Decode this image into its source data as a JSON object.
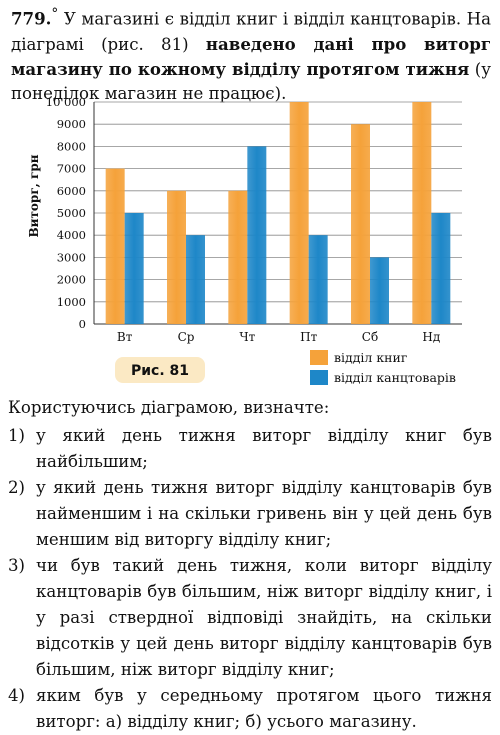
{
  "problem": {
    "number": "779.",
    "marker": "°",
    "text_part1": " У магазині є відділ книг і відділ канцтоварів. На діаграмі (рис. 81) ",
    "text_bold": "наведено дані про виторг магазину по кожному відділу протягом тижня",
    "text_part2": " (у понеділок магазин не працює)."
  },
  "chart_data": {
    "type": "bar",
    "categories": [
      "Вт",
      "Ср",
      "Чт",
      "Пт",
      "Сб",
      "Нд"
    ],
    "series": [
      {
        "name": "відділ книг",
        "values": [
          7000,
          6000,
          6000,
          10000,
          9000,
          10000
        ],
        "color": "#F5A23A"
      },
      {
        "name": "відділ канцтоварів",
        "values": [
          5000,
          4000,
          8000,
          4000,
          3000,
          5000
        ],
        "color": "#1E87C8"
      }
    ],
    "ylabel": "Виторг, грн",
    "ylim": [
      0,
      10000
    ],
    "yticks": [
      0,
      1000,
      2000,
      3000,
      4000,
      5000,
      6000,
      7000,
      8000,
      9000,
      10000
    ],
    "ytick_labels": [
      "0",
      "1000",
      "2000",
      "3000",
      "4000",
      "5000",
      "6000",
      "7000",
      "8000",
      "9000",
      "10 000"
    ],
    "grid": true,
    "legend_position": "bottom-right",
    "figure_label": "Рис. 81"
  },
  "questions": {
    "intro": "Користуючись діаграмою, визначте:",
    "items": [
      {
        "num": "1)",
        "text": "у який день тижня виторг відділу книг був найбільшим;"
      },
      {
        "num": "2)",
        "text": "у який день тижня виторг відділу канцтоварів був найменшим і на скільки гривень він у цей день був меншим від виторгу відділу книг;"
      },
      {
        "num": "3)",
        "text": "чи був такий день тижня, коли виторг відділу канцтоварів був більшим, ніж виторг відділу книг, і у разі ствердної відповіді знайдіть, на скільки відсотків у цей день виторг відділу канцтоварів був більшим, ніж виторг відділу книг;"
      },
      {
        "num": "4)",
        "text": "яким був у середньому протягом цього тижня виторг: а) відділу книг; б) усього магазину."
      }
    ]
  }
}
